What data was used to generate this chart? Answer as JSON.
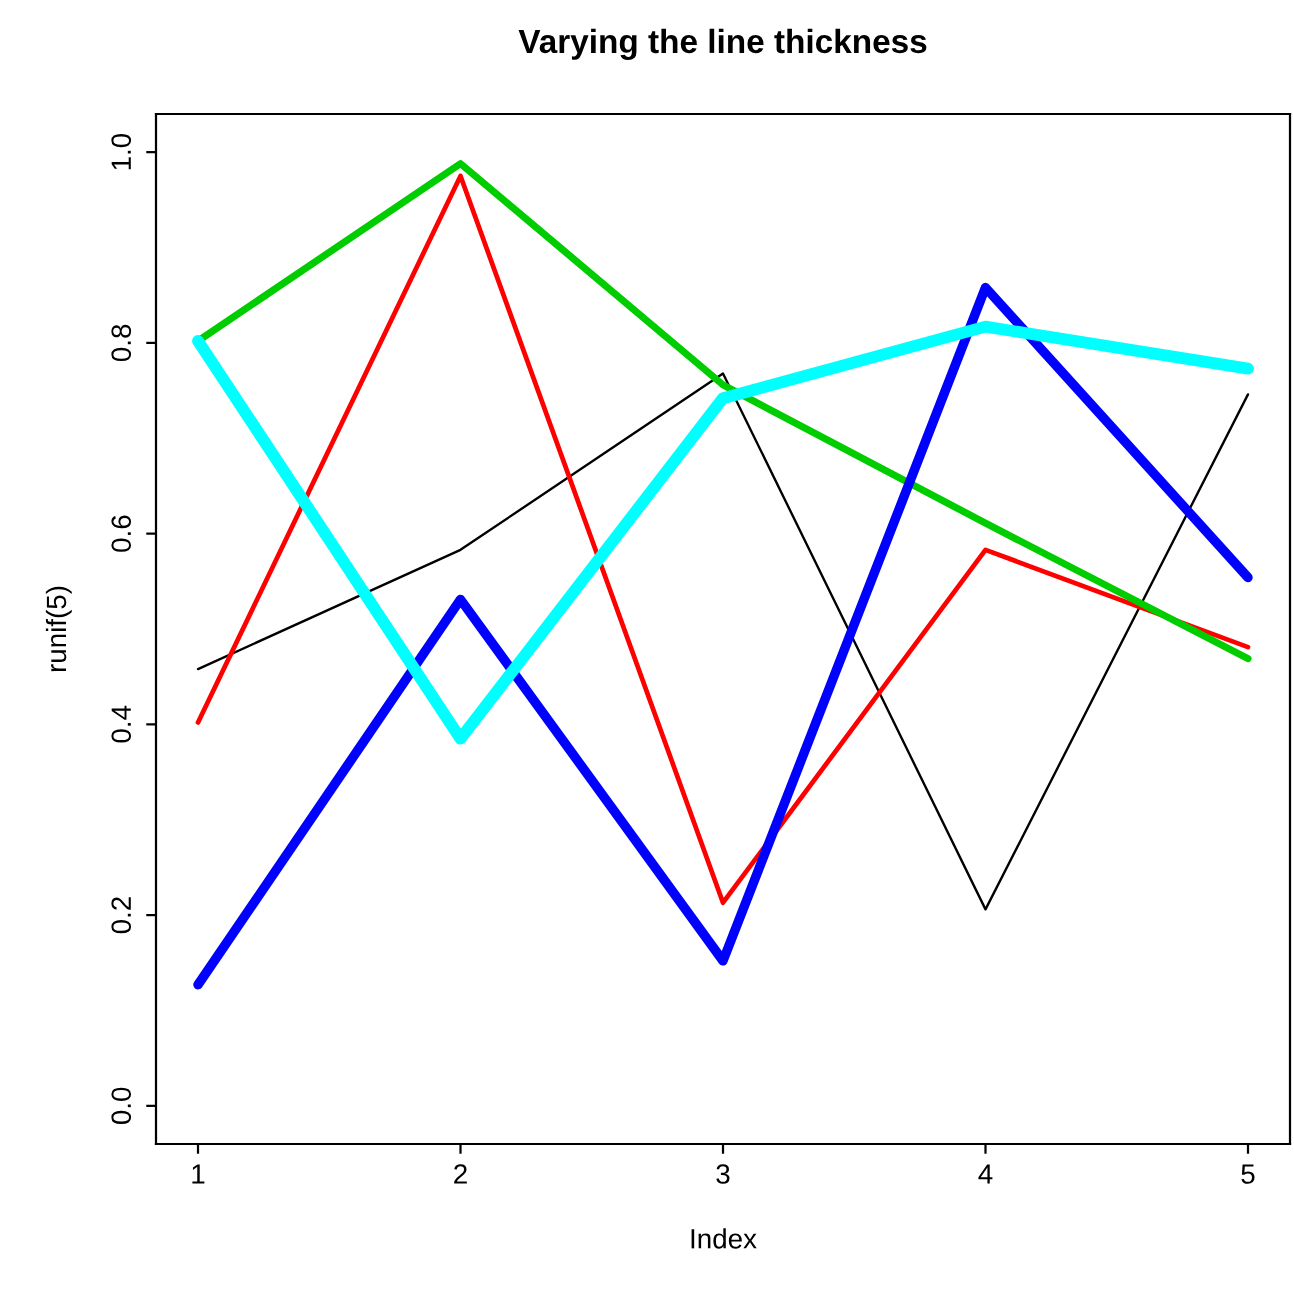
{
  "chart_data": {
    "type": "line",
    "title": "Varying the line thickness",
    "xlabel": "Index",
    "ylabel": "runif(5)",
    "x": [
      1,
      2,
      3,
      4,
      5
    ],
    "xlim": [
      0.84,
      5.16
    ],
    "xticks": [
      1,
      2,
      3,
      4,
      5
    ],
    "ylim": [
      -0.04,
      1.04
    ],
    "yticks": [
      {
        "value": 0,
        "label": "0.0"
      },
      {
        "value": 0.2,
        "label": "0.2"
      },
      {
        "value": 0.4,
        "label": "0.4"
      },
      {
        "value": 0.6,
        "label": "0.6"
      },
      {
        "value": 0.8,
        "label": "0.8"
      },
      {
        "value": 1,
        "label": "1.0"
      }
    ],
    "grid": false,
    "legend": false,
    "marker": "none",
    "line_style": "solid",
    "series": [
      {
        "color": "#000000",
        "values": [
          0.458,
          0.583,
          0.768,
          0.206,
          0.746
        ]
      },
      {
        "color": "#ff0000",
        "values": [
          0.402,
          0.975,
          0.213,
          0.583,
          0.481
        ]
      },
      {
        "color": "#00cd00",
        "values": [
          0.802,
          0.988,
          0.756,
          0.611,
          0.469
        ]
      },
      {
        "color": "#0000ff",
        "values": [
          0.127,
          0.531,
          0.152,
          0.858,
          0.554
        ]
      },
      {
        "color": "#00ffff",
        "values": [
          0.802,
          0.385,
          0.742,
          0.817,
          0.773
        ]
      }
    ]
  }
}
